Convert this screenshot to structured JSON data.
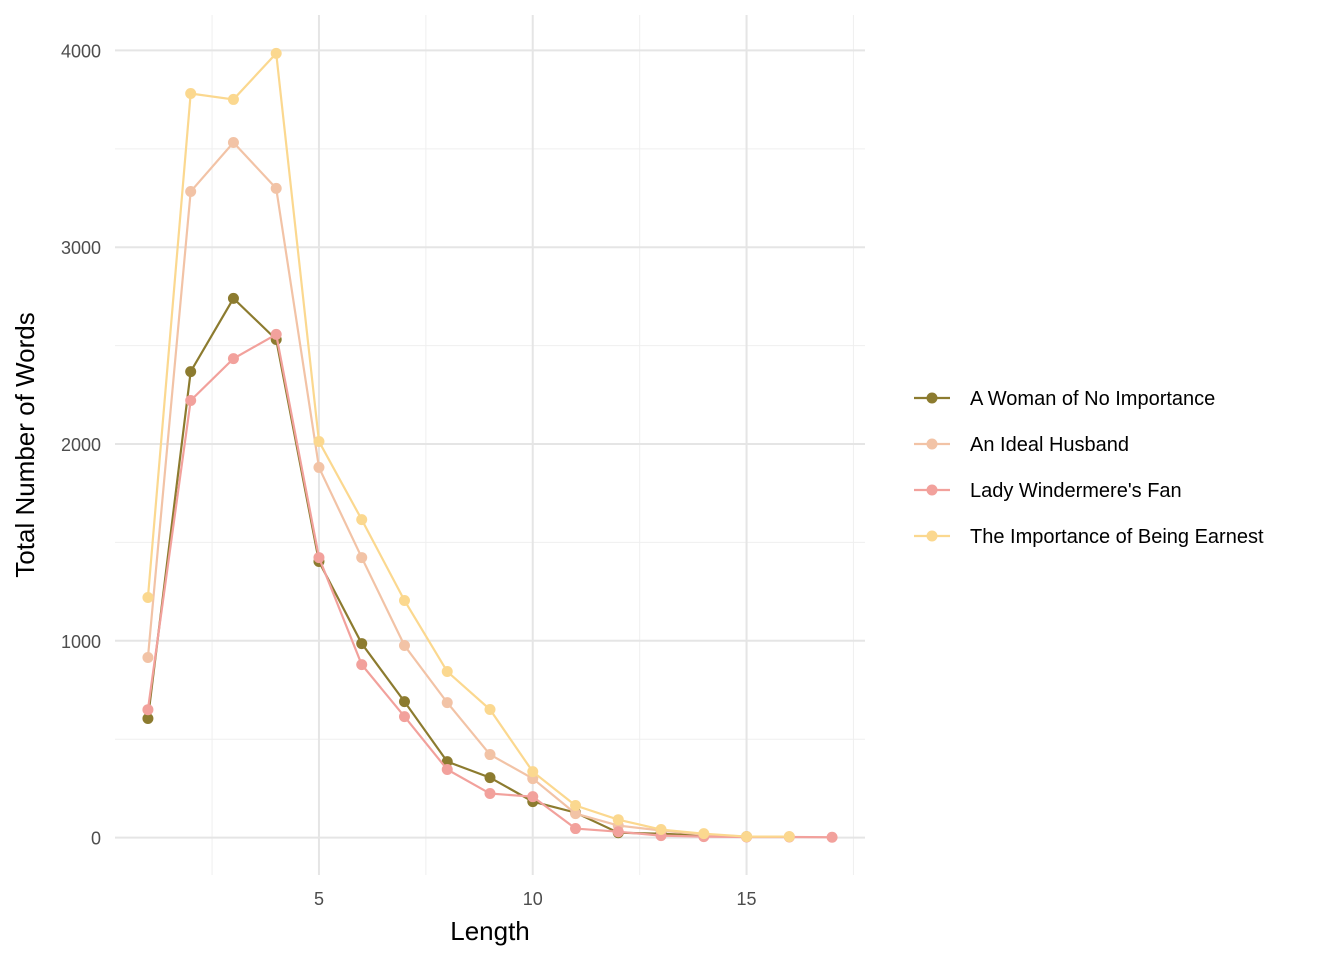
{
  "chart_data": {
    "type": "line",
    "title": "",
    "xlabel": "Length",
    "ylabel": "Total Number of Words",
    "xlim": [
      0.23,
      17.77
    ],
    "ylim": [
      -190,
      4180
    ],
    "x_ticks": [
      5,
      10,
      15
    ],
    "y_ticks": [
      0,
      1000,
      2000,
      3000,
      4000
    ],
    "grid": true,
    "legend_position": "right",
    "series": [
      {
        "name": "A Woman of No Importance",
        "color": "#8c7b2f",
        "x": [
          1,
          2,
          3,
          4,
          5,
          6,
          7,
          8,
          9,
          10,
          11,
          12,
          13,
          14,
          15
        ],
        "values": [
          605,
          2368,
          2740,
          2531,
          1403,
          986,
          691,
          386,
          305,
          183,
          127,
          25,
          20,
          10,
          5
        ]
      },
      {
        "name": "An Ideal Husband",
        "color": "#f2c3a6",
        "x": [
          1,
          2,
          3,
          4,
          5,
          6,
          7,
          8,
          9,
          10,
          11,
          12,
          13,
          14,
          15,
          16
        ],
        "values": [
          915,
          3283,
          3532,
          3299,
          1881,
          1423,
          976,
          686,
          422,
          300,
          122,
          61,
          36,
          15,
          5,
          5
        ]
      },
      {
        "name": "Lady Windermere's Fan",
        "color": "#f2a19c",
        "x": [
          1,
          2,
          3,
          4,
          5,
          6,
          7,
          8,
          9,
          10,
          11,
          12,
          13,
          14,
          15,
          16,
          17
        ],
        "values": [
          650,
          2221,
          2434,
          2557,
          1423,
          879,
          615,
          346,
          224,
          208,
          46,
          30,
          10,
          5,
          3,
          3,
          2
        ]
      },
      {
        "name": "The Importance of Being Earnest",
        "color": "#fbd88f",
        "x": [
          1,
          2,
          3,
          4,
          5,
          6,
          7,
          8,
          9,
          10,
          11,
          12,
          13,
          14,
          15,
          16
        ],
        "values": [
          1220,
          3781,
          3751,
          3985,
          2013,
          1616,
          1205,
          844,
          651,
          335,
          163,
          91,
          41,
          20,
          5,
          5
        ]
      }
    ]
  }
}
